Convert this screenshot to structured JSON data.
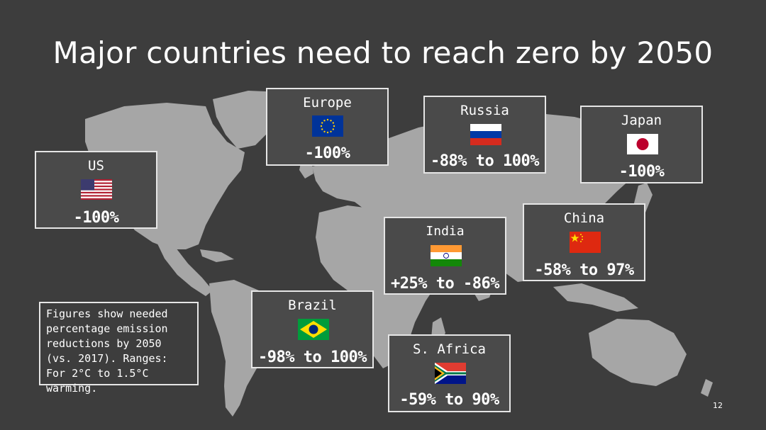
{
  "slide": {
    "title": "Major countries need to reach zero by 2050",
    "page_number": "12",
    "note": "Figures show needed percentage emission reductions by 2050 (vs. 2017). Ranges: For 2°C to 1.5°C warming."
  },
  "colors": {
    "background": "#3d3d3d",
    "land": "#a6a6a6",
    "card_fill": "#4a4a4a",
    "card_border": "#e6e6e6",
    "text": "#ffffff"
  },
  "regions": [
    {
      "id": "us",
      "name": "US",
      "value": "-100%",
      "flag": "us-flag-icon"
    },
    {
      "id": "europe",
      "name": "Europe",
      "value": "-100%",
      "flag": "eu-flag-icon"
    },
    {
      "id": "russia",
      "name": "Russia",
      "value": "-88% to 100%",
      "flag": "russia-flag-icon"
    },
    {
      "id": "japan",
      "name": "Japan",
      "value": "-100%",
      "flag": "japan-flag-icon"
    },
    {
      "id": "india",
      "name": "India",
      "value": "+25% to -86%",
      "flag": "india-flag-icon"
    },
    {
      "id": "china",
      "name": "China",
      "value": "-58% to 97%",
      "flag": "china-flag-icon"
    },
    {
      "id": "brazil",
      "name": "Brazil",
      "value": "-98% to 100%",
      "flag": "brazil-flag-icon"
    },
    {
      "id": "s_africa",
      "name": "S. Africa",
      "value": "-59% to 90%",
      "flag": "south-africa-flag-icon"
    }
  ]
}
